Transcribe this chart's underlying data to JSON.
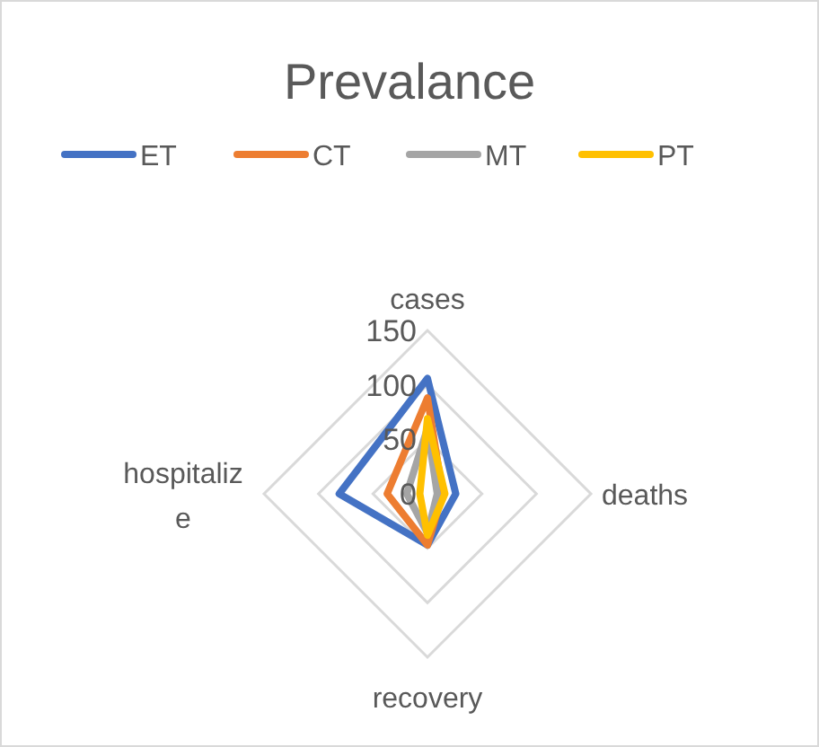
{
  "chart_data": {
    "type": "radar",
    "title": "Prevalance",
    "categories": [
      "cases",
      "deaths",
      "recovery",
      "hospitalize"
    ],
    "ylim": [
      0,
      150
    ],
    "yticks": [
      0,
      50,
      100,
      150
    ],
    "legend": "top",
    "grid": true,
    "series": [
      {
        "name": "ET",
        "color": "#4472c4",
        "values": [
          106,
          26,
          47,
          81
        ]
      },
      {
        "name": "CT",
        "color": "#ed7d31",
        "values": [
          88,
          14,
          47,
          37
        ]
      },
      {
        "name": "MT",
        "color": "#a5a5a5",
        "values": [
          60,
          9,
          36,
          19
        ]
      },
      {
        "name": "PT",
        "color": "#ffc000",
        "values": [
          69,
          16,
          38,
          7
        ]
      }
    ]
  }
}
